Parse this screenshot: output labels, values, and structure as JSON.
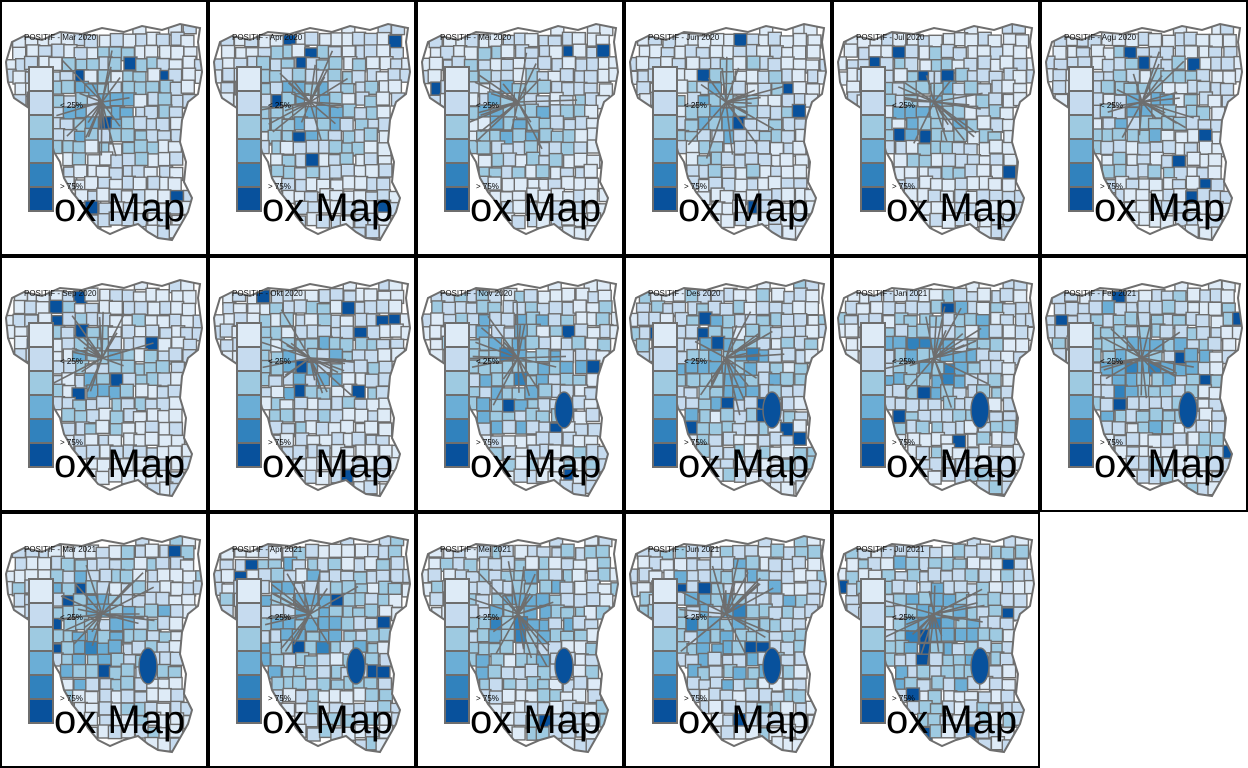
{
  "legend": {
    "colors": [
      "#f7fbff",
      "#deebf7",
      "#c6dbef",
      "#9ecae1",
      "#6baed6",
      "#3182bd",
      "#08519c"
    ],
    "low_label": "< 25%",
    "high_label": "> 75%"
  },
  "watermark": "ox Map",
  "panels": [
    {
      "title": "POSITIF - Mar 2020"
    },
    {
      "title": "POSITIF - Apr 2020"
    },
    {
      "title": "POSITIF - Mei 2020"
    },
    {
      "title": "POSITIF - Jun 2020"
    },
    {
      "title": "POSITIF - Jul 2020"
    },
    {
      "title": "POSITIF - Agu 2020"
    },
    {
      "title": "POSITIF - Sep 2020"
    },
    {
      "title": "POSITIF - Okt 2020"
    },
    {
      "title": "POSITIF - Nov 2020"
    },
    {
      "title": "POSITIF - Des 2020"
    },
    {
      "title": "POSITIF - Jan 2021"
    },
    {
      "title": "POSITIF - Feb 2021"
    },
    {
      "title": "POSITIF - Mar 2021"
    },
    {
      "title": "POSITIF - Apr 2021"
    },
    {
      "title": "POSITIF - Mei 2021"
    },
    {
      "title": "POSITIF - Jun 2021"
    },
    {
      "title": "POSITIF - Jul 2021"
    }
  ]
}
